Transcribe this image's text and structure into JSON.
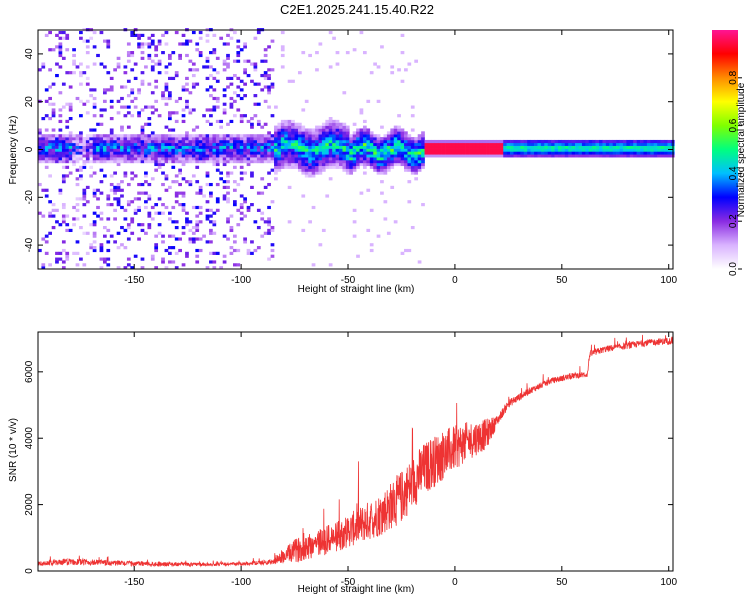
{
  "figure_title": "C2E1.2025.241.15.40.R22",
  "chart_data": [
    {
      "type": "heatmap",
      "panel": "spectrogram",
      "xlabel": "Height of straight line (km)",
      "ylabel": "Frequency (Hz)",
      "xlim": [
        -195,
        102
      ],
      "ylim": [
        -50,
        50
      ],
      "xticks": [
        -150,
        -100,
        -50,
        0,
        50,
        100
      ],
      "yticks": [
        -40,
        -20,
        0,
        20,
        40
      ],
      "colorbar": {
        "label": "Normalized spectral amplitude",
        "range": [
          0,
          1
        ],
        "ticks": [
          0.0,
          0.2,
          0.4,
          0.6,
          0.8
        ],
        "colors": [
          "#ffffff",
          "#d9b3ff",
          "#8a2be2",
          "#0000ff",
          "#00bfff",
          "#00ff7f",
          "#7fff00",
          "#ffff00",
          "#ff8c00",
          "#ff0000",
          "#ff1493"
        ]
      },
      "regions": [
        {
          "x_range": [
            -195,
            -86
          ],
          "description_level": "noise",
          "freq_spread": 50,
          "center_band_amp": 0.35
        },
        {
          "x_range": [
            -86,
            -50
          ],
          "description_level": "onset",
          "freq_spread": 10,
          "center_band_amp": 0.45
        },
        {
          "x_range": [
            -50,
            -15
          ],
          "description_level": "mixed",
          "freq_spread": 8,
          "center_band_amp": 0.5
        },
        {
          "x_range": [
            -15,
            22
          ],
          "description_level": "peak",
          "freq_spread": 2,
          "center_band_amp": 0.95
        },
        {
          "x_range": [
            22,
            102
          ],
          "description_level": "steady",
          "freq_spread": 4,
          "center_band_amp": 0.5
        }
      ]
    },
    {
      "type": "line",
      "panel": "snr",
      "xlabel": "Height of straight line (km)",
      "ylabel": "SNR (10 * v/v)",
      "xlim": [
        -195,
        102
      ],
      "ylim": [
        0,
        7200
      ],
      "xticks": [
        -150,
        -100,
        -50,
        0,
        50,
        100
      ],
      "yticks": [
        0,
        2000,
        4000,
        6000
      ],
      "color": "#ee3333",
      "envelope": {
        "x": [
          -195,
          -180,
          -150,
          -120,
          -100,
          -85,
          -75,
          -65,
          -55,
          -45,
          -35,
          -25,
          -15,
          -5,
          5,
          15,
          20,
          25,
          35,
          45,
          55,
          62,
          63,
          70,
          80,
          90,
          100
        ],
        "base": [
          200,
          250,
          200,
          180,
          200,
          250,
          500,
          700,
          900,
          1200,
          1500,
          2000,
          2800,
          3300,
          3700,
          4000,
          4500,
          5000,
          5400,
          5700,
          5850,
          5900,
          6500,
          6650,
          6750,
          6850,
          6900
        ],
        "amp": [
          120,
          200,
          150,
          100,
          100,
          150,
          700,
          900,
          900,
          1100,
          1300,
          1600,
          1600,
          1500,
          1200,
          900,
          300,
          250,
          200,
          180,
          180,
          180,
          200,
          200,
          200,
          200,
          200
        ]
      }
    }
  ]
}
